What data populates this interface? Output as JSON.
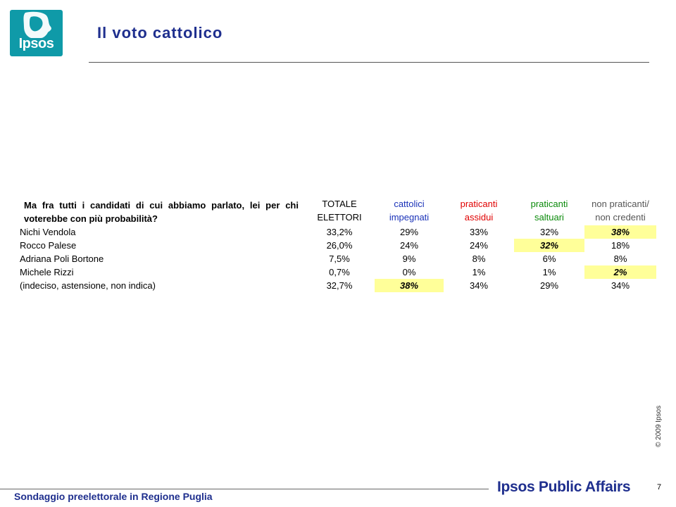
{
  "logo": {
    "text": "Ipsos"
  },
  "header": {
    "title": "Il voto cattolico"
  },
  "table": {
    "question_line1": "Ma fra tutti i candidati di cui abbiamo parlato, lei per chi",
    "question_line2": "voterebbe con più probabilità?",
    "columns": [
      {
        "line1": "TOTALE",
        "line2": "ELETTORI",
        "color": "#000000"
      },
      {
        "line1": "cattolici",
        "line2": "impegnati",
        "color": "#1a32b8"
      },
      {
        "line1": "praticanti",
        "line2": "assidui",
        "color": "#e00000"
      },
      {
        "line1": "praticanti",
        "line2": "saltuari",
        "color": "#0a8a0a"
      },
      {
        "line1": "non praticanti/",
        "line2": "non credenti",
        "color": "#555555"
      }
    ],
    "rows": [
      {
        "label": "Nichi Vendola",
        "values": [
          "33,2%",
          "29%",
          "33%",
          "32%",
          "38%"
        ]
      },
      {
        "label": "Rocco Palese",
        "values": [
          "26,0%",
          "24%",
          "24%",
          "32%",
          "18%"
        ]
      },
      {
        "label": "Adriana Poli Bortone",
        "values": [
          "7,5%",
          "9%",
          "8%",
          "6%",
          "8%"
        ]
      },
      {
        "label": "Michele Rizzi",
        "values": [
          "0,7%",
          "0%",
          "1%",
          "1%",
          "2%"
        ]
      },
      {
        "label": "(indeciso, astensione, non indica)",
        "values": [
          "32,7%",
          "38%",
          "34%",
          "29%",
          "34%"
        ]
      }
    ],
    "highlight_color": "#ffff99"
  },
  "footer": {
    "copyright": "© 2009 Ipsos",
    "page_number": "7",
    "survey_name": "Sondaggio preelettorale in Regione Puglia",
    "brand": "Ipsos Public Affairs"
  }
}
